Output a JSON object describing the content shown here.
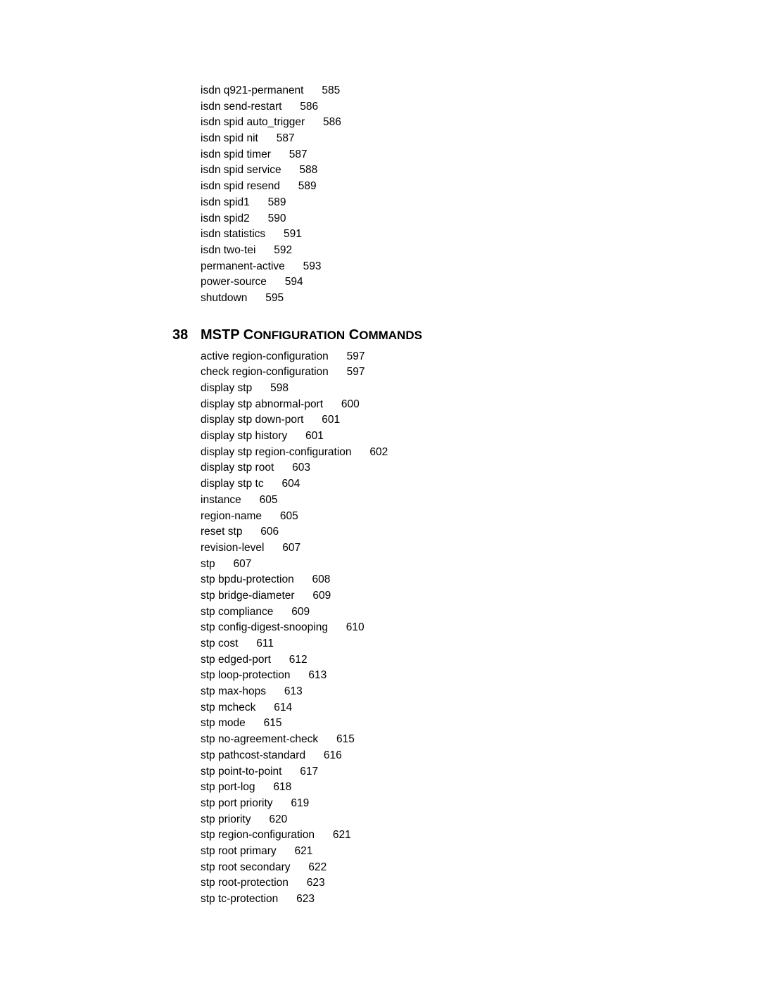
{
  "font": {
    "body_size_pt": 12,
    "heading_size_pt": 15,
    "family": "Arial",
    "color": "#000000"
  },
  "background_color": "#ffffff",
  "gap_between_cmd_and_page": "      ",
  "continued_section": {
    "entries": [
      {
        "cmd": "isdn q921-permanent",
        "page": "585"
      },
      {
        "cmd": "isdn send-restart",
        "page": "586"
      },
      {
        "cmd": "isdn spid auto_trigger",
        "page": "586"
      },
      {
        "cmd": "isdn spid nit",
        "page": "587"
      },
      {
        "cmd": "isdn spid timer",
        "page": "587"
      },
      {
        "cmd": "isdn spid service",
        "page": "588"
      },
      {
        "cmd": "isdn spid resend",
        "page": "589"
      },
      {
        "cmd": "isdn spid1",
        "page": "589"
      },
      {
        "cmd": "isdn spid2",
        "page": "590"
      },
      {
        "cmd": "isdn statistics",
        "page": "591"
      },
      {
        "cmd": "isdn two-tei",
        "page": "592"
      },
      {
        "cmd": "permanent-active",
        "page": "593"
      },
      {
        "cmd": "power-source",
        "page": "594"
      },
      {
        "cmd": "shutdown",
        "page": "595"
      }
    ]
  },
  "section38": {
    "number": "38",
    "title_parts": [
      "MSTP C",
      "ONFIGURATION",
      " C",
      "OMMANDS"
    ],
    "entries": [
      {
        "cmd": "active region-configuration",
        "page": "597"
      },
      {
        "cmd": "check region-configuration",
        "page": "597"
      },
      {
        "cmd": "display stp",
        "page": "598"
      },
      {
        "cmd": "display stp abnormal-port",
        "page": "600"
      },
      {
        "cmd": "display stp down-port",
        "page": "601"
      },
      {
        "cmd": "display stp history",
        "page": "601"
      },
      {
        "cmd": "display stp region-configuration",
        "page": "602"
      },
      {
        "cmd": "display stp root",
        "page": "603"
      },
      {
        "cmd": "display stp tc",
        "page": "604"
      },
      {
        "cmd": "instance",
        "page": "605"
      },
      {
        "cmd": "region-name",
        "page": "605"
      },
      {
        "cmd": "reset stp",
        "page": "606"
      },
      {
        "cmd": "revision-level",
        "page": "607"
      },
      {
        "cmd": "stp",
        "page": "607"
      },
      {
        "cmd": "stp bpdu-protection",
        "page": "608"
      },
      {
        "cmd": "stp bridge-diameter",
        "page": "609"
      },
      {
        "cmd": "stp compliance",
        "page": "609"
      },
      {
        "cmd": "stp config-digest-snooping",
        "page": "610"
      },
      {
        "cmd": "stp cost",
        "page": "611"
      },
      {
        "cmd": "stp edged-port",
        "page": "612"
      },
      {
        "cmd": "stp loop-protection",
        "page": "613"
      },
      {
        "cmd": "stp max-hops",
        "page": "613"
      },
      {
        "cmd": "stp mcheck",
        "page": "614"
      },
      {
        "cmd": "stp mode",
        "page": "615"
      },
      {
        "cmd": "stp no-agreement-check",
        "page": "615"
      },
      {
        "cmd": "stp pathcost-standard",
        "page": "616"
      },
      {
        "cmd": "stp point-to-point",
        "page": "617"
      },
      {
        "cmd": "stp port-log",
        "page": "618"
      },
      {
        "cmd": "stp port priority",
        "page": "619"
      },
      {
        "cmd": "stp priority",
        "page": "620"
      },
      {
        "cmd": "stp region-configuration",
        "page": "621"
      },
      {
        "cmd": "stp root primary",
        "page": "621"
      },
      {
        "cmd": "stp root secondary",
        "page": "622"
      },
      {
        "cmd": "stp root-protection",
        "page": "623"
      },
      {
        "cmd": "stp tc-protection",
        "page": "623"
      }
    ]
  }
}
